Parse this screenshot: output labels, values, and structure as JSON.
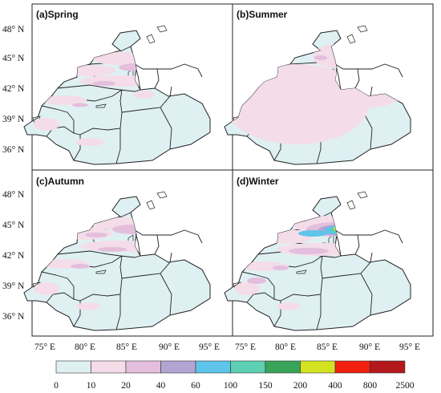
{
  "figure": {
    "panels": [
      {
        "id": "a",
        "label": "(a)Spring"
      },
      {
        "id": "b",
        "label": "(b)Summer"
      },
      {
        "id": "c",
        "label": "(c)Autumn"
      },
      {
        "id": "d",
        "label": "(d)Winter"
      }
    ],
    "lat_ticks": [
      "48° N",
      "45° N",
      "42° N",
      "39° N",
      "36° N"
    ],
    "lon_ticks": [
      "75° E",
      "80° E",
      "85° E",
      "90° E",
      "95° E"
    ],
    "colorbar": {
      "labels": [
        "0",
        "10",
        "20",
        "40",
        "60",
        "100",
        "150",
        "200",
        "400",
        "800",
        "2500"
      ],
      "colors": [
        "#dff0f3",
        "#f4dde9",
        "#e4bedd",
        "#b3a5d3",
        "#5ec4ea",
        "#5dcfb2",
        "#37a45a",
        "#d4e321",
        "#f2200f",
        "#b3191c"
      ]
    },
    "map_colors": {
      "land_background": "#dff0f3",
      "outline": "#222222"
    }
  }
}
